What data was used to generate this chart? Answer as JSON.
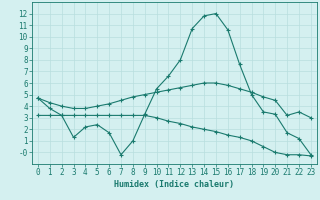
{
  "x": [
    0,
    1,
    2,
    3,
    4,
    5,
    6,
    7,
    8,
    9,
    10,
    11,
    12,
    13,
    14,
    15,
    16,
    17,
    18,
    19,
    20,
    21,
    22,
    23
  ],
  "line1": [
    4.7,
    3.8,
    3.2,
    1.3,
    2.2,
    2.4,
    1.7,
    -0.2,
    1.0,
    3.3,
    5.5,
    6.6,
    8.0,
    10.7,
    11.8,
    12.0,
    10.6,
    7.6,
    5.0,
    3.5,
    3.3,
    1.7,
    1.2,
    -0.2
  ],
  "line2": [
    3.2,
    3.2,
    3.2,
    3.2,
    3.2,
    3.2,
    3.2,
    3.2,
    3.2,
    3.2,
    3.0,
    2.7,
    2.5,
    2.2,
    2.0,
    1.8,
    1.5,
    1.3,
    1.0,
    0.5,
    0.0,
    -0.2,
    -0.2,
    -0.3
  ],
  "line3": [
    4.7,
    4.3,
    4.0,
    3.8,
    3.8,
    4.0,
    4.2,
    4.5,
    4.8,
    5.0,
    5.2,
    5.4,
    5.6,
    5.8,
    6.0,
    6.0,
    5.8,
    5.5,
    5.2,
    4.8,
    4.5,
    3.2,
    3.5,
    3.0
  ],
  "line_color": "#1a7a6e",
  "bg_color": "#d4f0f0",
  "grid_color": "#b8dede",
  "xlabel": "Humidex (Indice chaleur)",
  "ylim": [
    -1,
    13
  ],
  "xlim": [
    -0.5,
    23.5
  ],
  "yticks": [
    0,
    1,
    2,
    3,
    4,
    5,
    6,
    7,
    8,
    9,
    10,
    11,
    12
  ],
  "xticks": [
    0,
    1,
    2,
    3,
    4,
    5,
    6,
    7,
    8,
    9,
    10,
    11,
    12,
    13,
    14,
    15,
    16,
    17,
    18,
    19,
    20,
    21,
    22,
    23
  ],
  "xlabel_fontsize": 6.0,
  "tick_fontsize": 5.5,
  "linewidth": 0.8,
  "markersize": 3.5
}
